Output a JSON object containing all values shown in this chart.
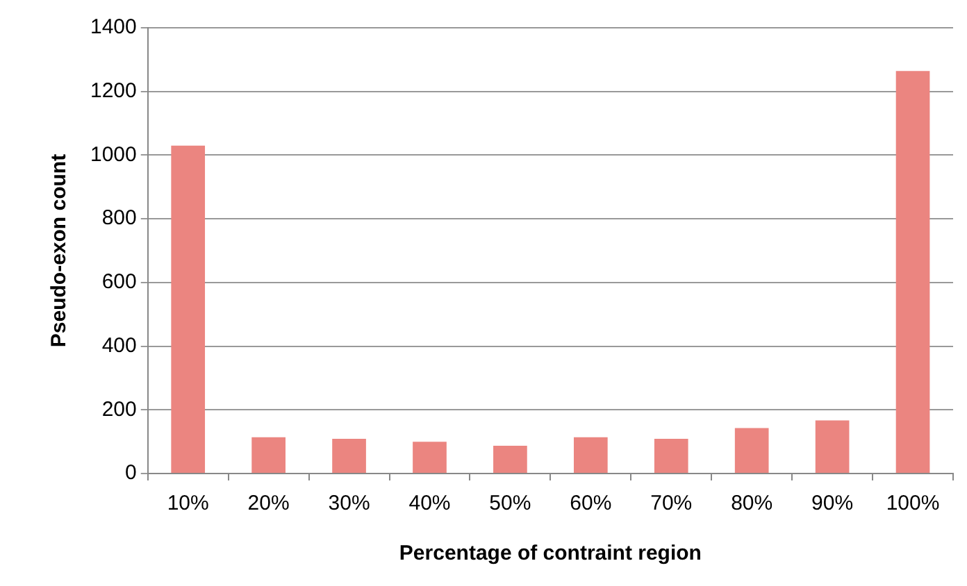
{
  "chart_data": {
    "type": "bar",
    "xlabel": "Percentage of contraint region",
    "ylabel": "Pseudo-exon count",
    "categories": [
      "10%",
      "20%",
      "30%",
      "40%",
      "50%",
      "60%",
      "70%",
      "80%",
      "90%",
      "100%"
    ],
    "values": [
      1030,
      114,
      109,
      100,
      87,
      114,
      109,
      143,
      167,
      1264
    ],
    "color": "#eb8580",
    "ylim": [
      0,
      1400
    ],
    "yticks": [
      0,
      200,
      400,
      600,
      800,
      1000,
      1200,
      1400
    ],
    "grid": "y"
  }
}
